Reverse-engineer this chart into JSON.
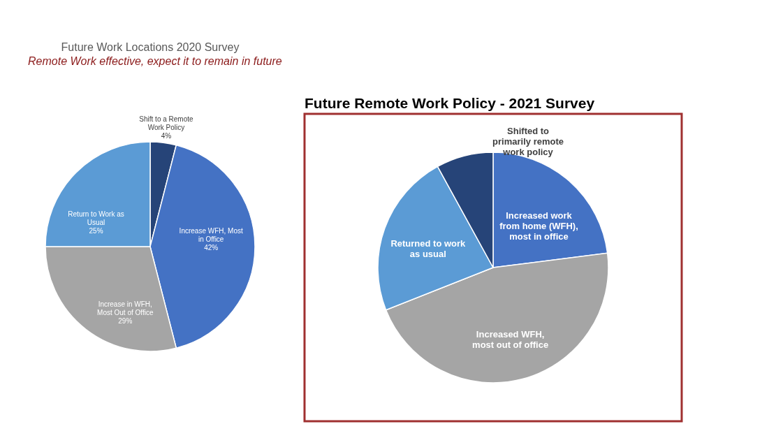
{
  "chart_data": [
    {
      "type": "pie",
      "title": "Future Work Locations 2020 Survey",
      "annotations": [
        "Remote Work effective, expect it to remain in future"
      ],
      "categories": [
        "Shift to a Remote Work Policy",
        "Increase WFH, Most in Office",
        "Increase in WFH, Most Out of Office",
        "Return to Work as Usual"
      ],
      "values": [
        4,
        42,
        29,
        25
      ],
      "colors": [
        "#264478",
        "#4472c4",
        "#a5a5a5",
        "#5b9bd5"
      ],
      "value_labels": [
        "4%",
        "42%",
        "29%",
        "25%"
      ]
    },
    {
      "type": "pie",
      "title": "Future Remote Work Policy - 2021 Survey",
      "categories": [
        "Increased work from home (WFH), most in office",
        "Increased WFH, most out of office",
        "Returned to work as usual",
        "Shifted to primarily remote work policy"
      ],
      "values": [
        23,
        46,
        23,
        8
      ],
      "colors": [
        "#4472c4",
        "#a5a5a5",
        "#5b9bd5",
        "#264478"
      ]
    }
  ]
}
